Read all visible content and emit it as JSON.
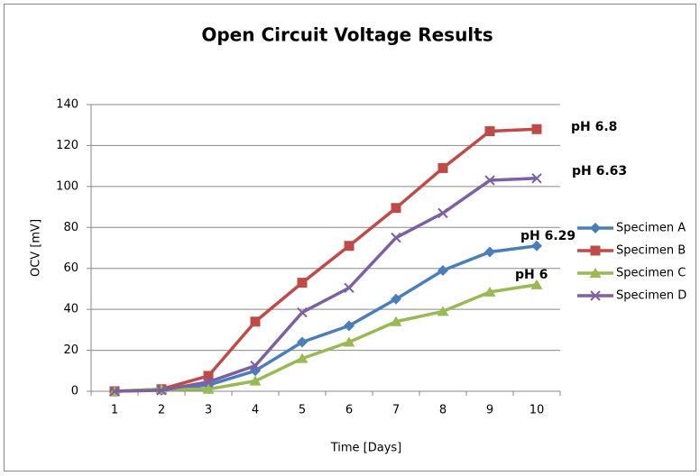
{
  "chart_data": {
    "type": "line",
    "title": "Open Circuit Voltage Results",
    "x_label": "Time [Days]",
    "y_label": "OCV [mV]",
    "categories": [
      1,
      2,
      3,
      4,
      5,
      6,
      7,
      8,
      9,
      10
    ],
    "series": [
      {
        "name": "Specimen A",
        "color": "#4a7ebb",
        "marker": "diamond",
        "values": [
          0,
          0.5,
          3,
          10,
          24,
          32,
          45,
          59,
          68,
          71
        ]
      },
      {
        "name": "Specimen B",
        "color": "#be4b48",
        "marker": "square",
        "values": [
          0,
          1,
          7.5,
          34,
          53,
          71,
          89.5,
          109,
          127,
          128
        ]
      },
      {
        "name": "Specimen C",
        "color": "#98b954",
        "marker": "triangle",
        "values": [
          0,
          1,
          1,
          5,
          16,
          24,
          34,
          39,
          48.5,
          52
        ]
      },
      {
        "name": "Specimen D",
        "color": "#7d60a0",
        "marker": "x",
        "values": [
          0,
          0.5,
          4.5,
          12.5,
          38.5,
          50.5,
          75,
          87,
          103,
          104
        ]
      }
    ],
    "annotations": [
      "pH 6.8",
      "pH 6.63",
      "pH 6.29",
      "pH 6"
    ],
    "ylim": [
      0,
      140
    ],
    "yticks": [
      0,
      20,
      40,
      60,
      80,
      100,
      120,
      140
    ],
    "grid": true,
    "legend": "right"
  }
}
